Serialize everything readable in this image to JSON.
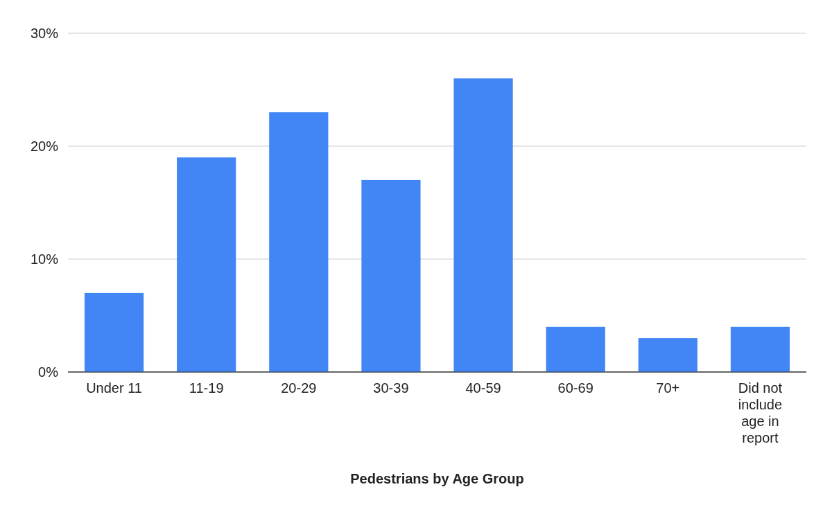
{
  "chart_data": {
    "type": "bar",
    "xlabel": "Pedestrians by Age Group",
    "categories": [
      "Under 11",
      "11-19",
      "20-29",
      "30-39",
      "40-59",
      "60-69",
      "70+",
      "Did not include age in report"
    ],
    "values": [
      7,
      19,
      23,
      17,
      26,
      4,
      3,
      4
    ],
    "color": "#4285f4",
    "ylim": [
      0,
      30
    ],
    "yticks": [
      {
        "value": 0,
        "label": "0%"
      },
      {
        "value": 10,
        "label": "10%"
      },
      {
        "value": 20,
        "label": "20%"
      },
      {
        "value": 30,
        "label": "30%"
      }
    ],
    "grid": "y"
  }
}
